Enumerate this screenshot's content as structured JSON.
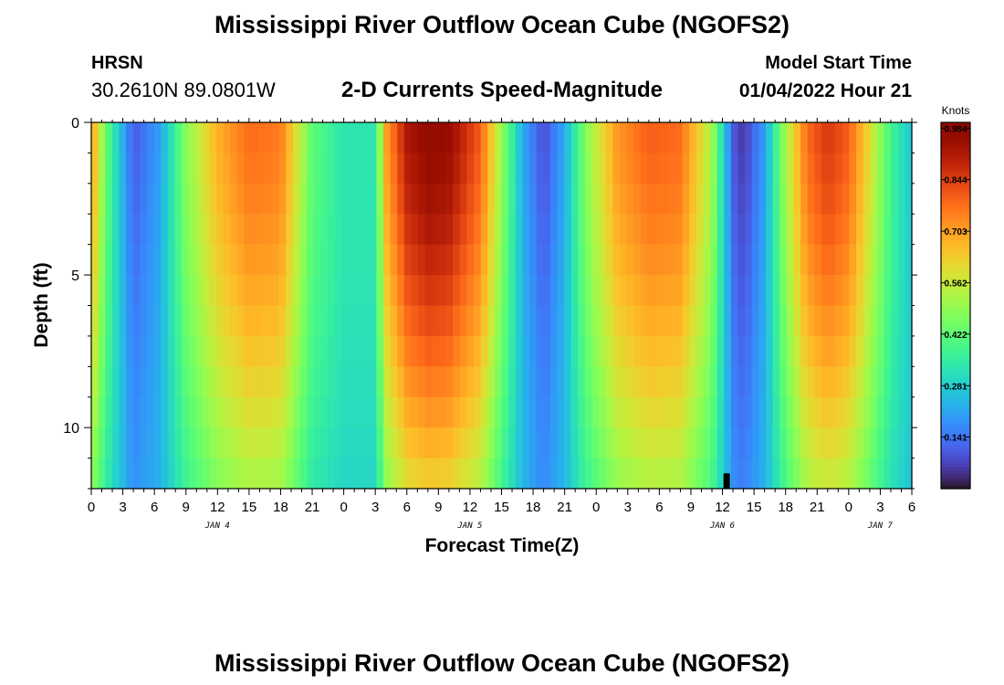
{
  "title": "Mississippi River Outflow Ocean Cube (NGOFS2)",
  "footer_title": "Mississippi River Outflow Ocean Cube (NGOFS2)",
  "station": {
    "name": "HRSN",
    "location": "30.2610N  89.0801W"
  },
  "subtitle": "2-D Currents Speed-Magnitude",
  "model_start": {
    "label": "Model Start Time",
    "value": "01/04/2022 Hour 21"
  },
  "colorbar": {
    "unit_label": "Knots",
    "tick_labels": [
      "0.984",
      "0.844",
      "0.703",
      "0.562",
      "0.422",
      "0.281",
      "0.141"
    ],
    "tick_values": [
      0.984,
      0.844,
      0.703,
      0.562,
      0.422,
      0.281,
      0.141
    ],
    "range": [
      0.0,
      1.0
    ]
  },
  "chart_data": {
    "type": "heatmap",
    "title": "2-D Currents Speed-Magnitude",
    "xlabel": "Forecast Time(Z)",
    "ylabel": "Depth (ft)",
    "x_tick_labels": [
      "0",
      "3",
      "6",
      "9",
      "12",
      "15",
      "18",
      "21",
      "0",
      "3",
      "6",
      "9",
      "12",
      "15",
      "18",
      "21",
      "0",
      "3",
      "6",
      "9",
      "12",
      "15",
      "18",
      "21",
      "0",
      "3",
      "6"
    ],
    "x_tick_hours": [
      0,
      3,
      6,
      9,
      12,
      15,
      18,
      21,
      24,
      27,
      30,
      33,
      36,
      39,
      42,
      45,
      48,
      51,
      54,
      57,
      60,
      63,
      66,
      69,
      72,
      75,
      78
    ],
    "date_labels": [
      "JAN 4",
      "JAN 5",
      "JAN 6",
      "JAN 7"
    ],
    "date_label_hours": [
      12,
      36,
      60,
      75
    ],
    "xlim_hours": [
      0,
      78
    ],
    "y_tick_labels": [
      "0",
      "5",
      "10"
    ],
    "y_tick_values": [
      0,
      5,
      10
    ],
    "ylim_ft": [
      0,
      12
    ],
    "y_inverted": true,
    "colormap": "turbo",
    "value_unit": "Knots",
    "value_range": [
      0.0,
      1.0
    ],
    "speed_profile_surface": [
      {
        "hour": 0,
        "speed": 0.72
      },
      {
        "hour": 1.5,
        "speed": 0.42
      },
      {
        "hour": 4,
        "speed": 0.1
      },
      {
        "hour": 6.5,
        "speed": 0.2
      },
      {
        "hour": 9,
        "speed": 0.48
      },
      {
        "hour": 12,
        "speed": 0.68
      },
      {
        "hour": 15,
        "speed": 0.78
      },
      {
        "hour": 18,
        "speed": 0.76
      },
      {
        "hour": 21,
        "speed": 0.42
      },
      {
        "hour": 24,
        "speed": 0.33
      },
      {
        "hour": 27,
        "speed": 0.33
      },
      {
        "hour": 28,
        "speed": 0.7
      },
      {
        "hour": 30,
        "speed": 0.92
      },
      {
        "hour": 32,
        "speed": 0.98
      },
      {
        "hour": 34,
        "speed": 0.96
      },
      {
        "hour": 37,
        "speed": 0.8
      },
      {
        "hour": 39,
        "speed": 0.5
      },
      {
        "hour": 41,
        "speed": 0.22
      },
      {
        "hour": 43,
        "speed": 0.08
      },
      {
        "hour": 45,
        "speed": 0.22
      },
      {
        "hour": 47,
        "speed": 0.48
      },
      {
        "hour": 50,
        "speed": 0.72
      },
      {
        "hour": 53,
        "speed": 0.8
      },
      {
        "hour": 56,
        "speed": 0.78
      },
      {
        "hour": 59,
        "speed": 0.52
      },
      {
        "hour": 61,
        "speed": 0.1
      },
      {
        "hour": 62,
        "speed": 0.05
      },
      {
        "hour": 64,
        "speed": 0.2
      },
      {
        "hour": 66,
        "speed": 0.52
      },
      {
        "hour": 68,
        "speed": 0.78
      },
      {
        "hour": 70,
        "speed": 0.86
      },
      {
        "hour": 72,
        "speed": 0.8
      },
      {
        "hour": 74,
        "speed": 0.6
      },
      {
        "hour": 76,
        "speed": 0.38
      },
      {
        "hour": 78,
        "speed": 0.26
      }
    ],
    "missing_cell": {
      "hour": 60.4,
      "depth_from_ft": 11.5,
      "depth_to_ft": 12
    }
  }
}
